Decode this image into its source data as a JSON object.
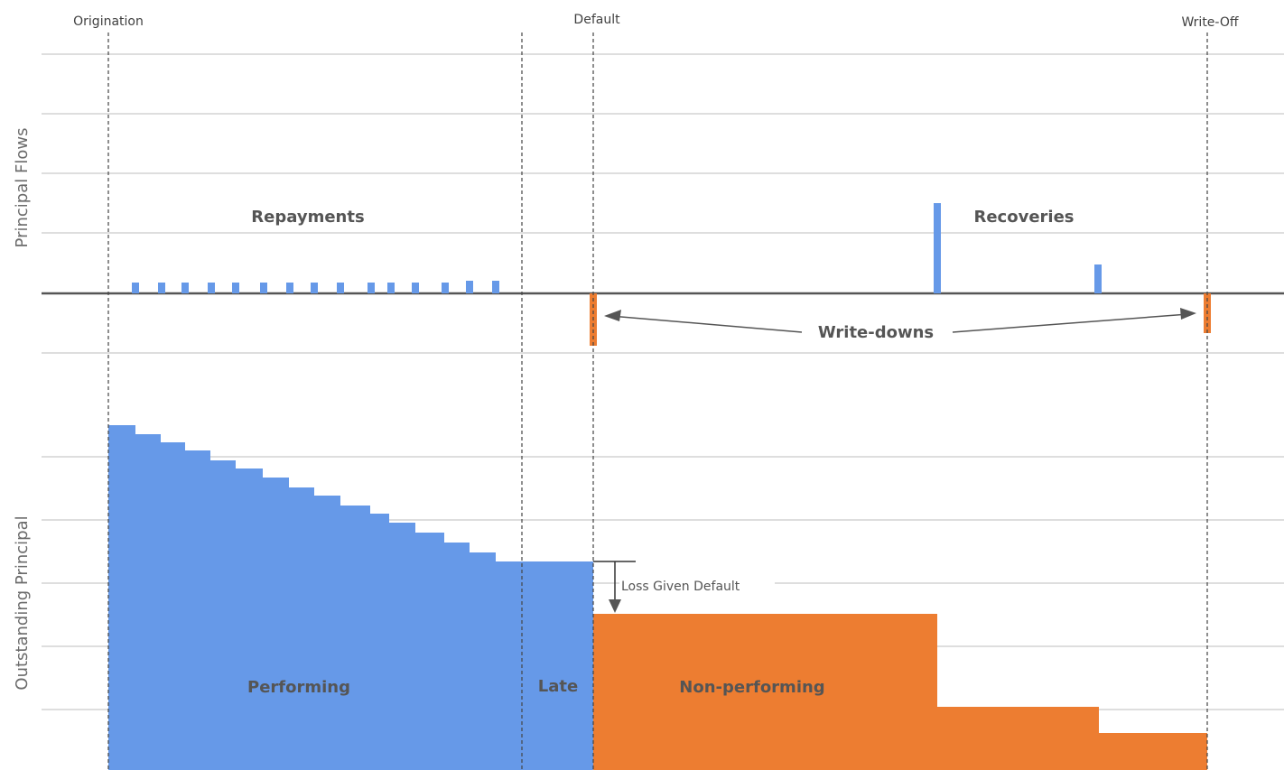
{
  "milestones": {
    "origination": "Origination",
    "default": "Default",
    "write_off": "Write-Off"
  },
  "axis_titles": {
    "top": "Principal Flows",
    "bottom": "Outstanding Principal"
  },
  "flow_labels": {
    "repayments": "Repayments",
    "recoveries": "Recoveries",
    "write_downs": "Write-downs"
  },
  "balance_labels": {
    "loss_given_default": "Loss Given Default",
    "performing": "Performing",
    "late": "Late",
    "non_performing": "Non-performing"
  },
  "colors": {
    "blue": "#6699e8",
    "orange": "#ed7d31",
    "zero_line": "#555555",
    "grid": "#d4d4d4",
    "milestone_line": "#444444"
  }
}
